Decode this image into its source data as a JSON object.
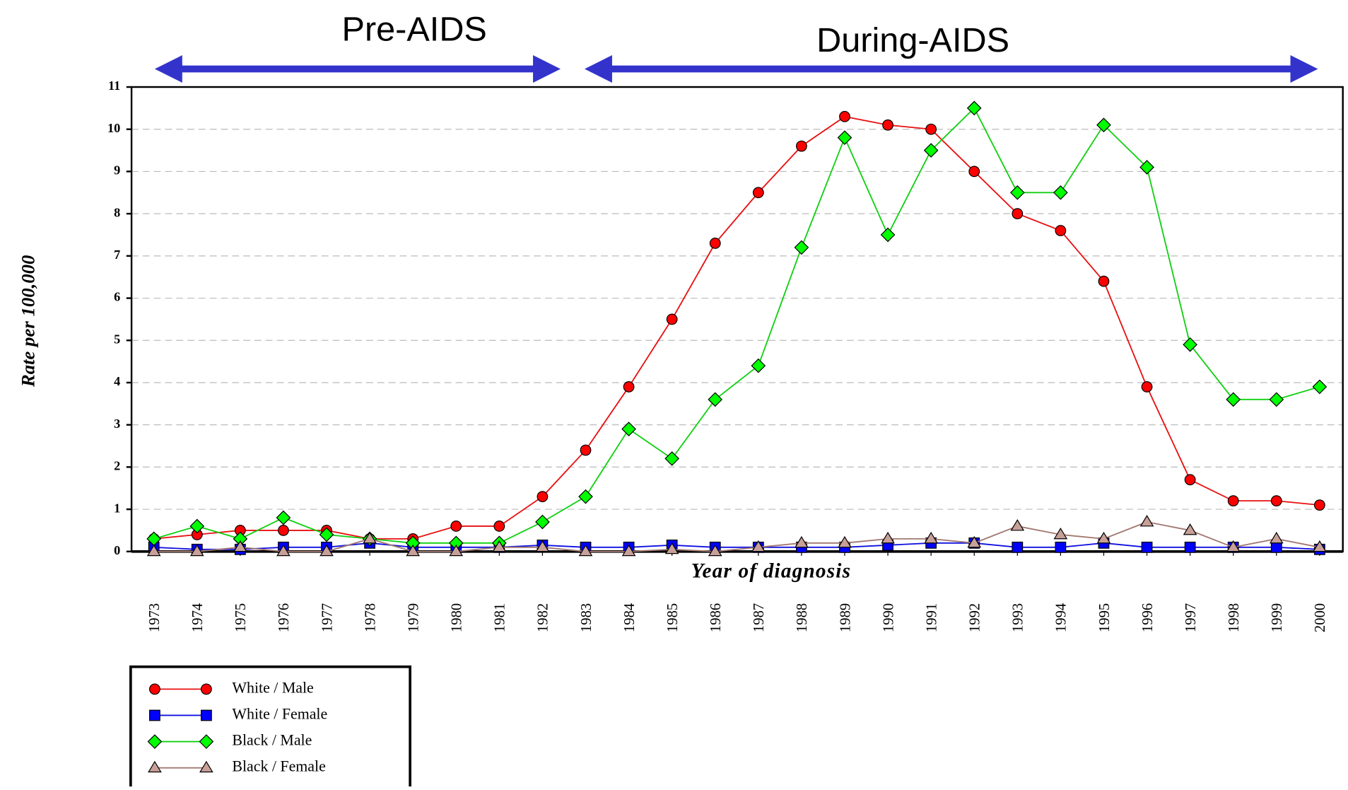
{
  "chart_data": {
    "type": "line",
    "annotations": [
      "Pre-AIDS",
      "During-AIDS"
    ],
    "ylabel": "Rate per 100,000",
    "xlabel": "Year of diagnosis",
    "categories": [
      "1973",
      "1974",
      "1975",
      "1976",
      "1977",
      "1978",
      "1979",
      "1980",
      "1981",
      "1982",
      "1983",
      "1984",
      "1985",
      "1986",
      "1987",
      "1988",
      "1989",
      "1990",
      "1991",
      "1992",
      "1993",
      "1994",
      "1995",
      "1996",
      "1997",
      "1998",
      "1999",
      "2000"
    ],
    "series": [
      {
        "name": "White / Male",
        "color": "#e81010",
        "marker": "circle",
        "marker_color": "#ff0000",
        "values": [
          0.3,
          0.4,
          0.5,
          0.5,
          0.5,
          0.3,
          0.3,
          0.6,
          0.6,
          1.3,
          2.4,
          3.9,
          5.5,
          7.3,
          8.5,
          9.6,
          10.3,
          10.1,
          10.0,
          9.0,
          8.0,
          7.6,
          6.4,
          3.9,
          1.7,
          1.2,
          1.2,
          1.1
        ]
      },
      {
        "name": "White / Female",
        "color": "#1010e0",
        "marker": "square",
        "marker_color": "#0000ff",
        "values": [
          0.1,
          0.05,
          0.05,
          0.1,
          0.1,
          0.2,
          0.1,
          0.1,
          0.1,
          0.15,
          0.1,
          0.1,
          0.15,
          0.1,
          0.1,
          0.1,
          0.1,
          0.15,
          0.2,
          0.2,
          0.1,
          0.1,
          0.2,
          0.1,
          0.1,
          0.1,
          0.1,
          0.05
        ]
      },
      {
        "name": "Black / Male",
        "color": "#10d010",
        "marker": "diamond",
        "marker_color": "#00ff00",
        "values": [
          0.3,
          0.6,
          0.3,
          0.8,
          0.4,
          0.3,
          0.2,
          0.2,
          0.2,
          0.7,
          1.3,
          2.9,
          2.2,
          3.6,
          4.4,
          7.2,
          9.8,
          7.5,
          9.5,
          10.5,
          8.5,
          8.5,
          10.1,
          9.1,
          4.9,
          3.6,
          3.6,
          3.9
        ]
      },
      {
        "name": "Black / Female",
        "color": "#a07870",
        "marker": "triangle",
        "marker_color": "#c8a098",
        "values": [
          0,
          0,
          0.1,
          0,
          0,
          0.3,
          0,
          0,
          0.1,
          0.1,
          0,
          0,
          0.05,
          0,
          0.1,
          0.2,
          0.2,
          0.3,
          0.3,
          0.2,
          0.6,
          0.4,
          0.3,
          0.7,
          0.5,
          0.1,
          0.3,
          0.1
        ]
      }
    ],
    "ylim": [
      0,
      11
    ],
    "yticks": [
      0,
      1,
      2,
      3,
      4,
      5,
      6,
      7,
      8,
      9,
      10,
      11
    ],
    "grid": true,
    "legend": "bottom-left"
  }
}
